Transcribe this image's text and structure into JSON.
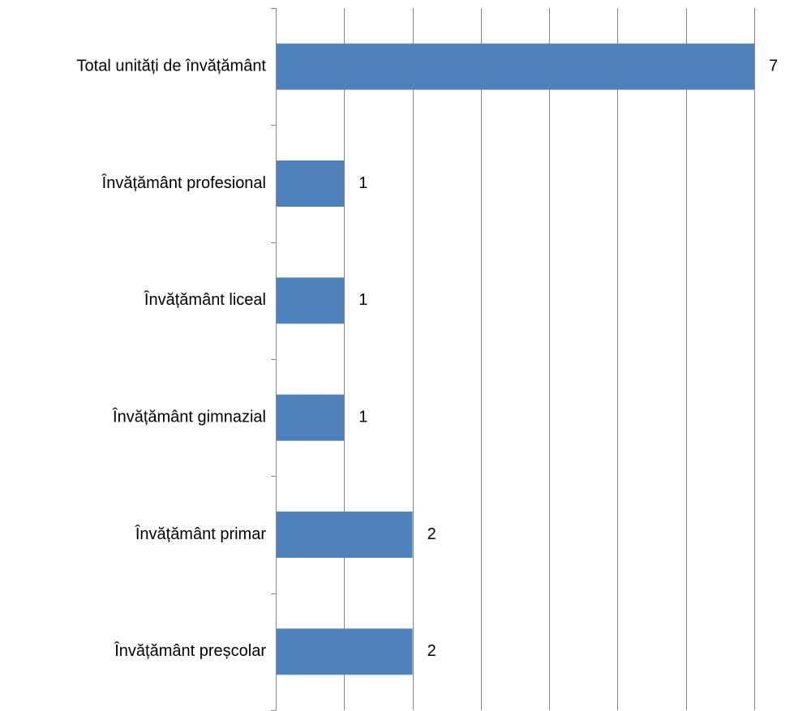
{
  "chart_data": {
    "type": "bar",
    "orientation": "horizontal",
    "categories": [
      "Total unități de învățământ",
      "Învățământ profesional",
      "Învățământ liceal",
      "Învățământ gimnazial",
      "Învățământ primar",
      "Învățământ preșcolar"
    ],
    "values": [
      7,
      1,
      1,
      1,
      2,
      2
    ],
    "xlim": [
      0,
      7
    ],
    "major_unit": 1,
    "grid": true,
    "grid_axis": "x",
    "show_value_labels": true,
    "bar_color": "#4F81BD",
    "grid_color": "#868686"
  }
}
